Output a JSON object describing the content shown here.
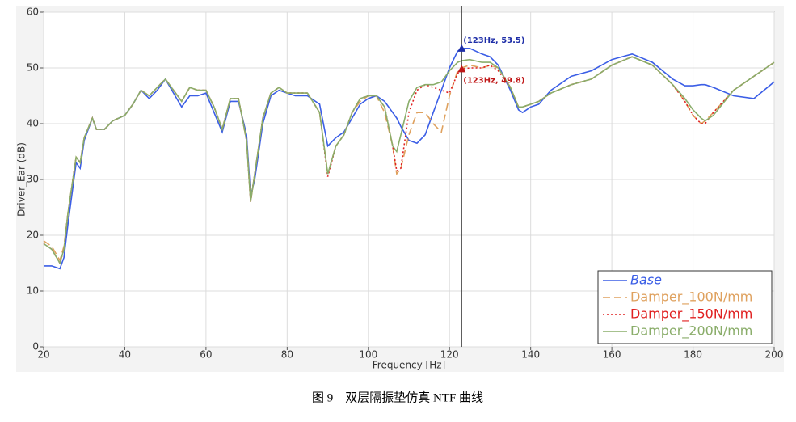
{
  "chart_data": {
    "type": "line",
    "x_label": "Frequency [Hz]",
    "y_label": "Driver_Ear (dB)",
    "xlim": [
      20,
      200
    ],
    "ylim": [
      0,
      60
    ],
    "xticks": [
      20,
      40,
      60,
      80,
      100,
      120,
      140,
      160,
      180,
      200
    ],
    "yticks": [
      0,
      10,
      20,
      30,
      40,
      50,
      60
    ],
    "grid": true,
    "legend": "lower right",
    "cursor_x": 123,
    "x": [
      20,
      22,
      24,
      25,
      26,
      28,
      29,
      30,
      32,
      33,
      35,
      37,
      40,
      42,
      44,
      46,
      48,
      50,
      52,
      54,
      56,
      58,
      60,
      62,
      64,
      66,
      68,
      70,
      71,
      72,
      74,
      76,
      78,
      80,
      82,
      85,
      88,
      90,
      92,
      94,
      96,
      98,
      100,
      102,
      104,
      106,
      107,
      108,
      110,
      112,
      114,
      116,
      118,
      120,
      122,
      123,
      125,
      128,
      130,
      132,
      135,
      137,
      138,
      140,
      142,
      145,
      150,
      155,
      160,
      165,
      170,
      175,
      178,
      180,
      182,
      183,
      185,
      190,
      195,
      200
    ],
    "series": [
      {
        "name": "Base",
        "color": "#3b5ee6",
        "dash": "none",
        "values": [
          14.5,
          14.5,
          14,
          16,
          22,
          33,
          32,
          37,
          41,
          39,
          39,
          40.5,
          41.5,
          43.5,
          46,
          44.5,
          46,
          48,
          45.5,
          43,
          45,
          45,
          45.5,
          42,
          38.5,
          44,
          44,
          38,
          27,
          30,
          40,
          45,
          46,
          45.5,
          45,
          45,
          43.5,
          36,
          37.5,
          38.5,
          41,
          43.5,
          44.5,
          45,
          44,
          42,
          41,
          39.5,
          37,
          36.5,
          38,
          42,
          46,
          50,
          53,
          53.5,
          53.5,
          52.5,
          52,
          50.5,
          46,
          42.5,
          42,
          43,
          43.5,
          46,
          48.5,
          49.5,
          51.5,
          52.5,
          51,
          48,
          46.8,
          46.8,
          47,
          47,
          46.5,
          45,
          44.5,
          47.5
        ]
      },
      {
        "name": "Damper_100N/mm",
        "color": "#dfa15e",
        "dash": "9,5",
        "values": [
          19,
          18,
          15.5,
          18,
          24,
          34,
          33,
          37.5,
          41,
          39,
          39,
          40.5,
          41.5,
          43.5,
          46,
          45,
          46.5,
          48,
          46,
          44,
          46.5,
          46,
          46,
          43,
          39,
          44.5,
          44.5,
          37,
          26,
          31,
          41,
          45.5,
          46.5,
          45.5,
          45.5,
          45.5,
          42,
          31,
          36,
          38,
          42,
          44,
          45,
          45,
          42,
          36,
          31,
          32,
          38,
          42,
          42,
          40,
          38.5,
          45,
          49.5,
          50,
          50.5,
          50,
          50.5,
          50,
          46.5,
          43,
          43,
          43.5,
          44,
          45.5,
          47,
          48,
          50.5,
          52,
          50.5,
          47,
          44,
          41.5,
          40,
          40.5,
          42,
          46,
          48.5,
          51
        ]
      },
      {
        "name": "Damper_150N/mm",
        "color": "#e02020",
        "dash": "2,3",
        "values": [
          18.5,
          17.5,
          15,
          17.5,
          24,
          34,
          33,
          37.5,
          41,
          39,
          39,
          40.5,
          41.5,
          43.5,
          46,
          45,
          46.5,
          48,
          46,
          44,
          46.5,
          46,
          46,
          43,
          39,
          44.5,
          44.5,
          37,
          26,
          31,
          41,
          45.5,
          46.5,
          45.5,
          45.5,
          45.5,
          42,
          30.5,
          36,
          38,
          42,
          44.5,
          45,
          45,
          43,
          36,
          31.5,
          32,
          42,
          46,
          47,
          46.5,
          46,
          45.5,
          49,
          49.8,
          50,
          50,
          50.5,
          49.5,
          46.5,
          43,
          43,
          43.5,
          44,
          45.5,
          47,
          48,
          50.5,
          52,
          50.5,
          47,
          44,
          41.5,
          40,
          40,
          42,
          46,
          48.5,
          51
        ]
      },
      {
        "name": "Damper_200N/mm",
        "color": "#8aad6a",
        "dash": "none",
        "values": [
          18.5,
          17.5,
          15,
          17.5,
          24,
          34,
          33,
          37.5,
          41,
          39,
          39,
          40.5,
          41.5,
          43.5,
          46,
          45,
          46.5,
          48,
          46,
          44,
          46.5,
          46,
          46,
          43,
          39,
          44.5,
          44.5,
          37,
          26,
          31,
          41,
          45.5,
          46.5,
          45.5,
          45.5,
          45.5,
          42,
          31,
          36,
          38,
          42,
          44.5,
          45,
          45,
          43,
          36,
          35,
          38,
          44,
          46.5,
          47,
          47,
          47.5,
          49.5,
          51,
          51.3,
          51.5,
          51,
          51,
          50,
          46.5,
          43,
          43,
          43.5,
          44,
          45.5,
          47,
          48,
          50.5,
          52,
          50.5,
          47,
          44.5,
          42.5,
          41,
          40.5,
          41.5,
          46,
          48.5,
          51
        ]
      }
    ],
    "annotations": [
      {
        "text": "(123Hz, 53.5)",
        "x": 123,
        "y": 53.5,
        "color": "#1f2fa8"
      },
      {
        "text": "(123Hz, 49.8)",
        "x": 123,
        "y": 49.8,
        "color": "#c01818"
      }
    ]
  },
  "caption": "图 9　双层隔振垫仿真 NTF 曲线"
}
